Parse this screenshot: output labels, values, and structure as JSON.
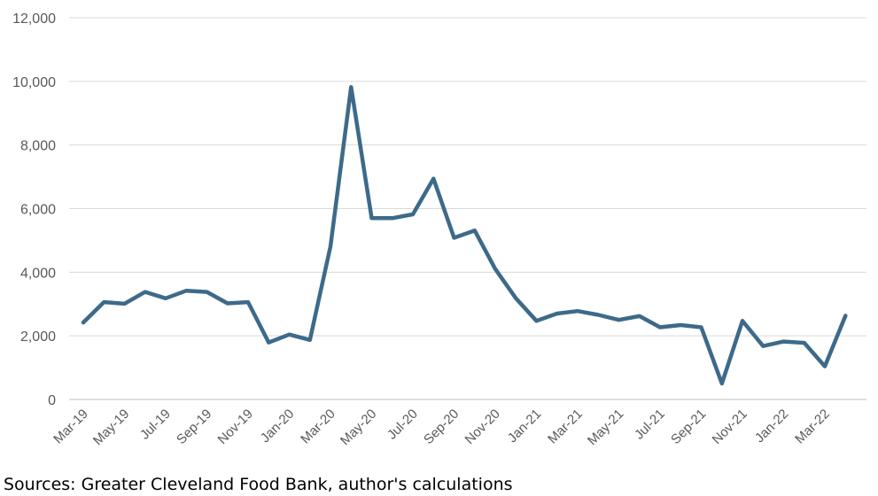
{
  "chart_data": {
    "type": "line",
    "title": "",
    "xlabel": "",
    "ylabel": "",
    "ylim": [
      0,
      12000
    ],
    "yticks": [
      "0",
      "2,000",
      "4,000",
      "6,000",
      "8,000",
      "10,000",
      "12,000"
    ],
    "ytick_values": [
      0,
      2000,
      4000,
      6000,
      8000,
      10000,
      12000
    ],
    "x": [
      "Mar-19",
      "Apr-19",
      "May-19",
      "Jun-19",
      "Jul-19",
      "Aug-19",
      "Sep-19",
      "Oct-19",
      "Nov-19",
      "Dec-19",
      "Jan-20",
      "Feb-20",
      "Mar-20",
      "Apr-20",
      "May-20",
      "Jun-20",
      "Jul-20",
      "Aug-20",
      "Sep-20",
      "Oct-20",
      "Nov-20",
      "Dec-20",
      "Jan-21",
      "Feb-21",
      "Mar-21",
      "Apr-21",
      "May-21",
      "Jun-21",
      "Jul-21",
      "Aug-21",
      "Sep-21",
      "Oct-21",
      "Nov-21",
      "Dec-21",
      "Jan-22",
      "Feb-22",
      "Mar-22",
      "Apr-22"
    ],
    "xtick_labels": [
      "Mar-19",
      "May-19",
      "Jul-19",
      "Sep-19",
      "Nov-19",
      "Jan-20",
      "Mar-20",
      "May-20",
      "Jul-20",
      "Sep-20",
      "Nov-20",
      "Jan-21",
      "Mar-21",
      "May-21",
      "Jul-21",
      "Sep-21",
      "Nov-21",
      "Jan-22",
      "Mar-22"
    ],
    "series": [
      {
        "color": "#3d6a8a",
        "values": [
          2420,
          3060,
          3010,
          3380,
          3180,
          3420,
          3380,
          3020,
          3060,
          1790,
          2040,
          1870,
          4810,
          9820,
          5700,
          5700,
          5820,
          6940,
          5080,
          5310,
          4100,
          3180,
          2470,
          2700,
          2780,
          2660,
          2500,
          2620,
          2270,
          2340,
          2270,
          500,
          2470,
          1680,
          1820,
          1780,
          1040,
          2630
        ]
      }
    ],
    "grid": true,
    "legend": "none"
  },
  "footer": {
    "source": "Sources: Greater Cleveland Food Bank, author's calculations"
  }
}
